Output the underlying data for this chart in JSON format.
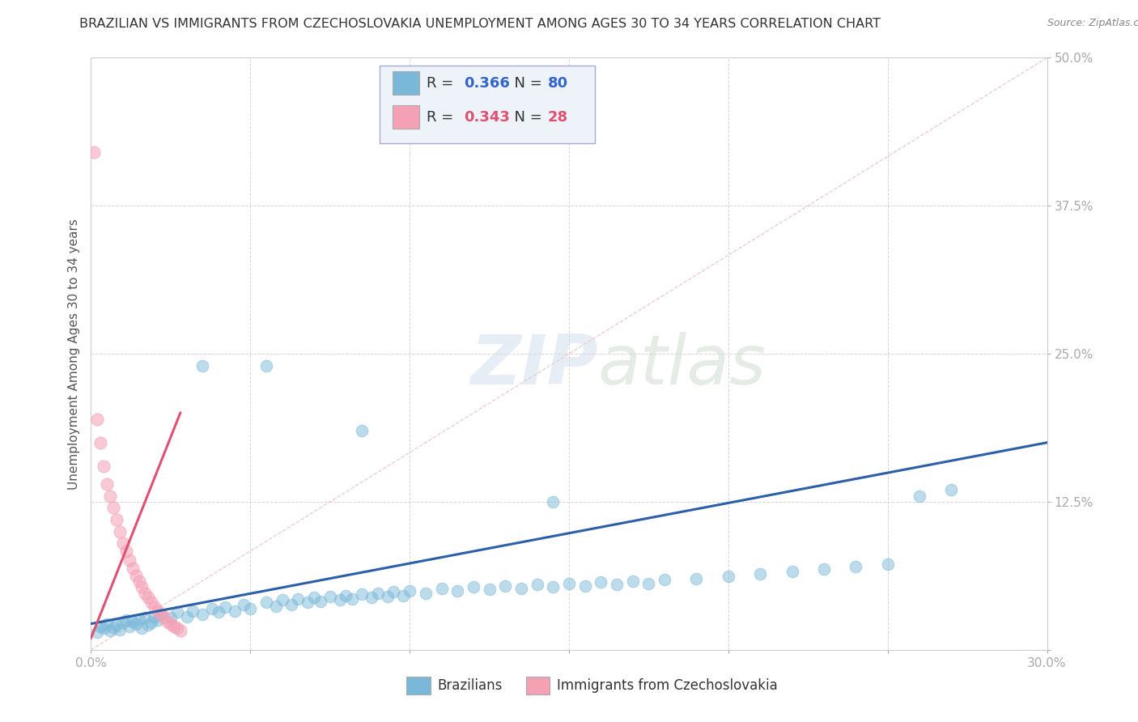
{
  "title": "BRAZILIAN VS IMMIGRANTS FROM CZECHOSLOVAKIA UNEMPLOYMENT AMONG AGES 30 TO 34 YEARS CORRELATION CHART",
  "source": "Source: ZipAtlas.com",
  "ylabel": "Unemployment Among Ages 30 to 34 years",
  "xlim": [
    0.0,
    0.3
  ],
  "ylim": [
    0.0,
    0.5
  ],
  "xticks": [
    0.0,
    0.05,
    0.1,
    0.15,
    0.2,
    0.25,
    0.3
  ],
  "xticklabels": [
    "0.0%",
    "",
    "",
    "",
    "",
    "",
    "30.0%"
  ],
  "yticks": [
    0.0,
    0.125,
    0.25,
    0.375,
    0.5
  ],
  "yticklabels": [
    "",
    "12.5%",
    "25.0%",
    "37.5%",
    "50.0%"
  ],
  "brazil_R": 0.366,
  "brazil_N": 80,
  "czech_R": 0.343,
  "czech_N": 28,
  "brazil_color": "#7ab8d9",
  "czech_color": "#f4a0b5",
  "brazil_line_color": "#2b5fa8",
  "czech_line_color": "#e05070",
  "legend_box_color": "#eef3fa",
  "brazil_scatter_x": [
    0.002,
    0.003,
    0.004,
    0.005,
    0.006,
    0.007,
    0.008,
    0.009,
    0.01,
    0.011,
    0.012,
    0.013,
    0.014,
    0.015,
    0.016,
    0.017,
    0.018,
    0.019,
    0.02,
    0.021,
    0.022,
    0.025,
    0.027,
    0.03,
    0.032,
    0.035,
    0.038,
    0.04,
    0.042,
    0.045,
    0.048,
    0.05,
    0.055,
    0.058,
    0.06,
    0.063,
    0.065,
    0.068,
    0.07,
    0.072,
    0.075,
    0.078,
    0.08,
    0.082,
    0.085,
    0.088,
    0.09,
    0.093,
    0.095,
    0.098,
    0.1,
    0.105,
    0.11,
    0.115,
    0.12,
    0.125,
    0.13,
    0.135,
    0.14,
    0.145,
    0.15,
    0.155,
    0.16,
    0.165,
    0.17,
    0.175,
    0.18,
    0.19,
    0.2,
    0.21,
    0.22,
    0.23,
    0.24,
    0.25,
    0.26,
    0.27,
    0.145,
    0.085,
    0.035,
    0.055
  ],
  "brazil_scatter_y": [
    0.015,
    0.02,
    0.018,
    0.022,
    0.016,
    0.019,
    0.021,
    0.017,
    0.023,
    0.025,
    0.02,
    0.024,
    0.022,
    0.026,
    0.018,
    0.027,
    0.021,
    0.023,
    0.028,
    0.025,
    0.03,
    0.027,
    0.032,
    0.028,
    0.033,
    0.03,
    0.035,
    0.032,
    0.036,
    0.033,
    0.038,
    0.035,
    0.04,
    0.037,
    0.042,
    0.038,
    0.043,
    0.04,
    0.044,
    0.041,
    0.045,
    0.042,
    0.046,
    0.043,
    0.047,
    0.044,
    0.048,
    0.045,
    0.049,
    0.046,
    0.05,
    0.048,
    0.052,
    0.05,
    0.053,
    0.051,
    0.054,
    0.052,
    0.055,
    0.053,
    0.056,
    0.054,
    0.057,
    0.055,
    0.058,
    0.056,
    0.059,
    0.06,
    0.062,
    0.064,
    0.066,
    0.068,
    0.07,
    0.072,
    0.13,
    0.135,
    0.125,
    0.185,
    0.24,
    0.24
  ],
  "czech_scatter_x": [
    0.001,
    0.002,
    0.003,
    0.004,
    0.005,
    0.006,
    0.007,
    0.008,
    0.009,
    0.01,
    0.011,
    0.012,
    0.013,
    0.014,
    0.015,
    0.016,
    0.017,
    0.018,
    0.019,
    0.02,
    0.021,
    0.022,
    0.023,
    0.024,
    0.025,
    0.026,
    0.027,
    0.028
  ],
  "czech_scatter_y": [
    0.42,
    0.195,
    0.175,
    0.155,
    0.14,
    0.13,
    0.12,
    0.11,
    0.1,
    0.09,
    0.083,
    0.076,
    0.069,
    0.063,
    0.058,
    0.053,
    0.048,
    0.044,
    0.04,
    0.036,
    0.033,
    0.03,
    0.027,
    0.024,
    0.022,
    0.02,
    0.018,
    0.016
  ],
  "brazil_line_x": [
    0.0,
    0.3
  ],
  "brazil_line_y": [
    0.022,
    0.175
  ],
  "czech_line_x": [
    0.0,
    0.028
  ],
  "czech_line_y": [
    0.01,
    0.2
  ],
  "diag_line_x": [
    0.0,
    0.3
  ],
  "diag_line_y": [
    0.0,
    0.5
  ]
}
